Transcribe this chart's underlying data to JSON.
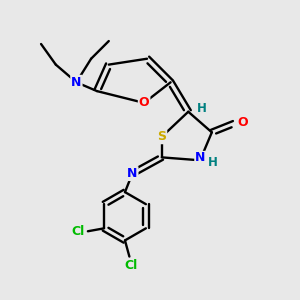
{
  "background_color": "#e8e8e8",
  "bond_color": "#000000",
  "atom_colors": {
    "N": "#0000ff",
    "O": "#ff0000",
    "S": "#ccaa00",
    "Cl": "#00bb00",
    "H": "#008080",
    "C": "#000000"
  },
  "figsize": [
    3.0,
    3.0
  ],
  "dpi": 100
}
